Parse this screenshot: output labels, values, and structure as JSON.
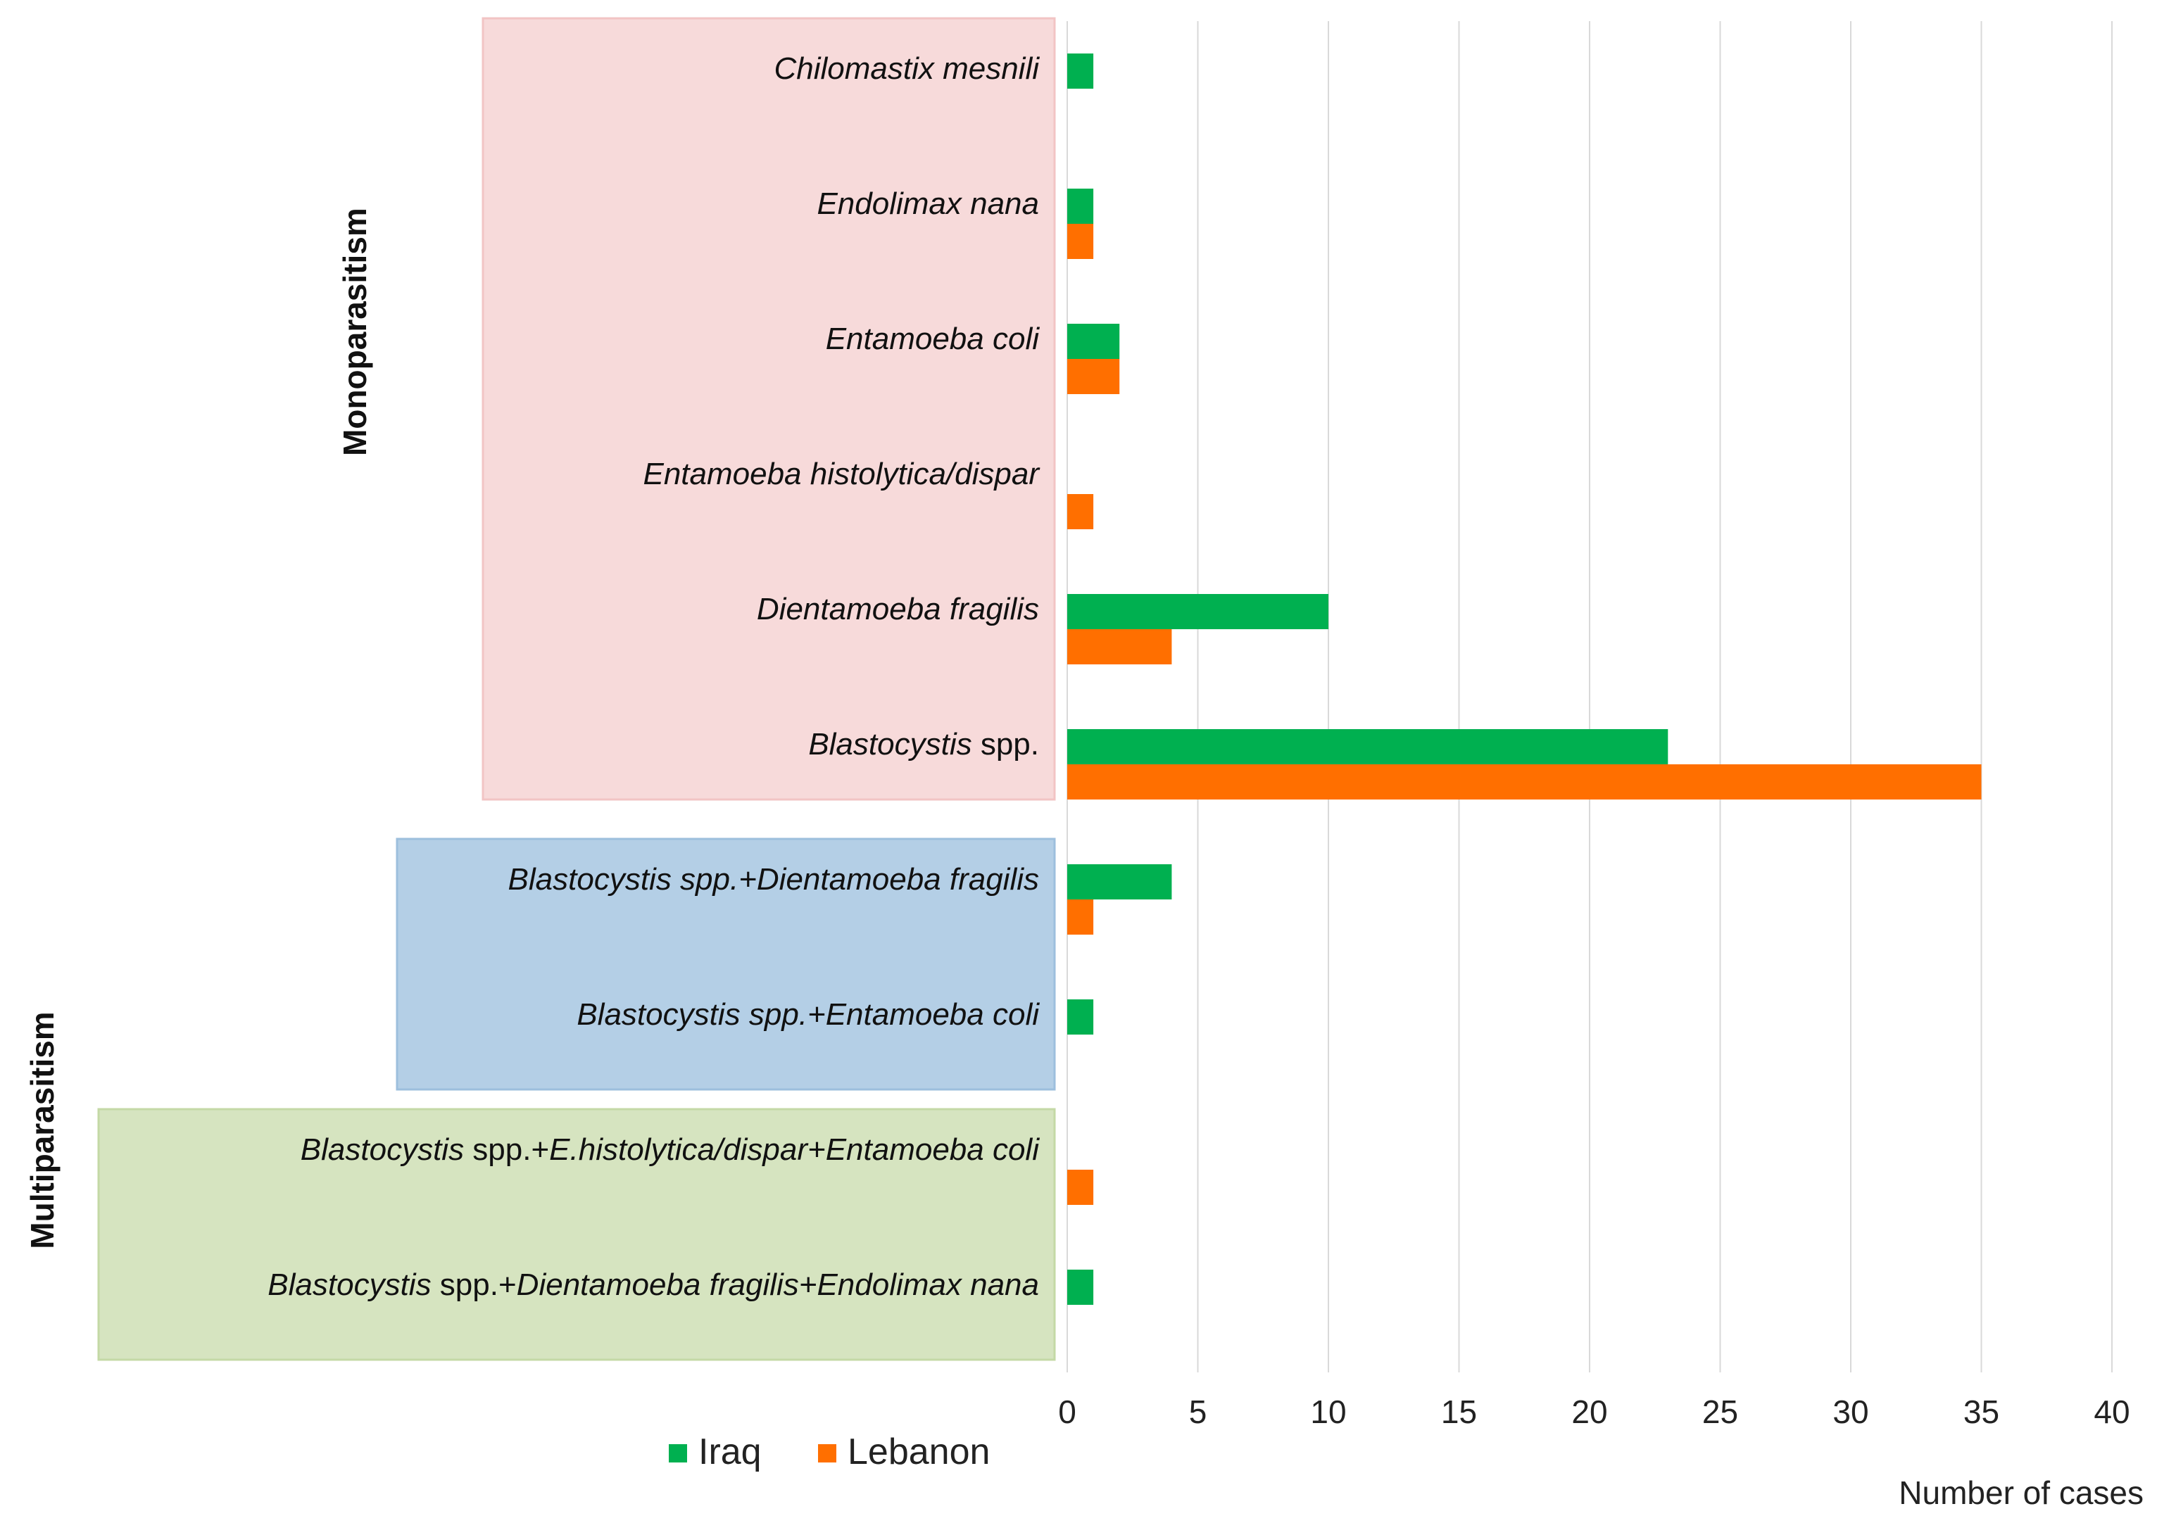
{
  "chart_data": {
    "type": "bar",
    "orientation": "horizontal",
    "xlabel": "Number of cases",
    "xlim": [
      0,
      40
    ],
    "xticks": [
      0,
      5,
      10,
      15,
      20,
      25,
      30,
      35,
      40
    ],
    "grid": true,
    "legend_position": "bottom",
    "categories": [
      {
        "segments": [
          {
            "text": "Chilomastix mesnili",
            "italic": true
          }
        ]
      },
      {
        "segments": [
          {
            "text": "Endolimax nana",
            "italic": true
          }
        ]
      },
      {
        "segments": [
          {
            "text": "Entamoeba coli",
            "italic": true
          }
        ]
      },
      {
        "segments": [
          {
            "text": "Entamoeba histolytica/dispar",
            "italic": true
          }
        ]
      },
      {
        "segments": [
          {
            "text": "Dientamoeba fragilis",
            "italic": true
          }
        ]
      },
      {
        "segments": [
          {
            "text": "Blastocystis",
            "italic": true
          },
          {
            "text": " spp.",
            "italic": false
          }
        ]
      },
      {
        "segments": [
          {
            "text": "Blastocystis spp.+Dientamoeba fragilis",
            "italic": true
          }
        ]
      },
      {
        "segments": [
          {
            "text": "Blastocystis spp.+Entamoeba coli",
            "italic": true
          }
        ]
      },
      {
        "segments": [
          {
            "text": "Blastocystis",
            "italic": true
          },
          {
            "text": " spp.+",
            "italic": false
          },
          {
            "text": "E.histolytica/dispar+Entamoeba coli",
            "italic": true
          }
        ]
      },
      {
        "segments": [
          {
            "text": "Blastocystis",
            "italic": true
          },
          {
            "text": " spp.+",
            "italic": false
          },
          {
            "text": "Dientamoeba fragilis+Endolimax nana",
            "italic": true
          }
        ]
      }
    ],
    "series": [
      {
        "name": "Iraq",
        "color": "#00b050",
        "values": [
          1,
          1,
          2,
          0,
          10,
          23,
          4,
          1,
          0,
          1
        ]
      },
      {
        "name": "Lebanon",
        "color": "#ff6f00",
        "values": [
          0,
          1,
          2,
          1,
          4,
          35,
          1,
          0,
          1,
          0
        ]
      }
    ],
    "groups": [
      {
        "label": "Monoparasitism",
        "category_indices": [
          0,
          1,
          2,
          3,
          4,
          5
        ]
      },
      {
        "label": "Multiparasitism",
        "category_indices": [
          6,
          7,
          8,
          9
        ]
      }
    ],
    "highlight_boxes": [
      {
        "category_indices": [
          0,
          1,
          2,
          3,
          4,
          5
        ],
        "color": "#f7dada",
        "border": "#f2c4c4"
      },
      {
        "category_indices": [
          6,
          7
        ],
        "color": "#b4cfe6",
        "border": "#9dbfdd"
      },
      {
        "category_indices": [
          8,
          9
        ],
        "color": "#d6e4c0",
        "border": "#c4d9a6"
      }
    ]
  }
}
